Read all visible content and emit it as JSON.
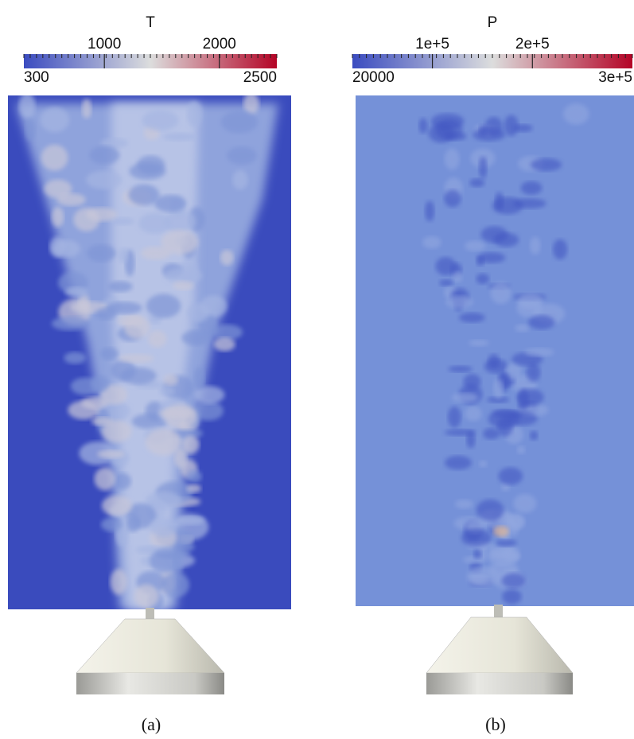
{
  "panels": [
    {
      "colorbar": {
        "title": "T",
        "range": [
          300,
          2500
        ],
        "ticks": [
          1000,
          2000
        ]
      },
      "caption": "(a)"
    },
    {
      "colorbar": {
        "title": "P",
        "range": [
          {
            "value": 20000,
            "label": "20000"
          },
          {
            "value": 300000,
            "label": "3e+5"
          }
        ],
        "ticks": [
          {
            "value": 100000,
            "label": "1e+5"
          },
          {
            "value": 200000,
            "label": "2e+5"
          }
        ]
      },
      "caption": "(b)"
    }
  ]
}
